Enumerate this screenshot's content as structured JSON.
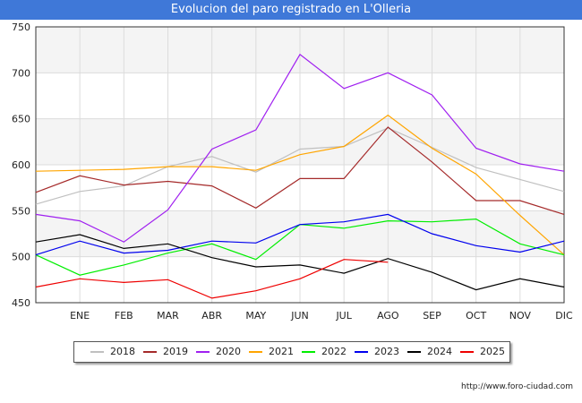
{
  "title": "Evolucion del paro registrado en L'Olleria",
  "footer_url": "http://www.foro-ciudad.com",
  "chart_data": {
    "type": "line",
    "title": "Evolucion del paro registrado en L'Olleria",
    "categories": [
      "",
      "ENE",
      "FEB",
      "MAR",
      "ABR",
      "MAY",
      "JUN",
      "JUL",
      "AGO",
      "SEP",
      "OCT",
      "NOV",
      "DIC"
    ],
    "ylim": [
      450,
      750
    ],
    "yticks": [
      450,
      500,
      550,
      600,
      650,
      700,
      750
    ],
    "grid": true,
    "legend_position": "bottom",
    "series": [
      {
        "name": "2018",
        "color": "#c0c0c0",
        "values": [
          557,
          571,
          577,
          598,
          609,
          592,
          617,
          620,
          640,
          619,
          597,
          584,
          571
        ]
      },
      {
        "name": "2019",
        "color": "#a52a2a",
        "values": [
          570,
          588,
          578,
          582,
          577,
          553,
          585,
          585,
          641,
          603,
          561,
          561,
          546
        ]
      },
      {
        "name": "2020",
        "color": "#a020f0",
        "values": [
          546,
          539,
          516,
          551,
          617,
          638,
          720,
          683,
          700,
          676,
          618,
          601,
          593
        ]
      },
      {
        "name": "2021",
        "color": "#ffa500",
        "values": [
          593,
          594,
          595,
          598,
          598,
          594,
          611,
          620,
          654,
          618,
          590,
          545,
          502
        ]
      },
      {
        "name": "2022",
        "color": "#00ee00",
        "values": [
          502,
          480,
          491,
          504,
          514,
          497,
          535,
          531,
          539,
          538,
          541,
          514,
          502
        ]
      },
      {
        "name": "2023",
        "color": "#0000ee",
        "values": [
          502,
          517,
          504,
          507,
          517,
          515,
          535,
          538,
          546,
          525,
          512,
          505,
          517
        ]
      },
      {
        "name": "2024",
        "color": "#000000",
        "values": [
          516,
          524,
          509,
          514,
          499,
          489,
          491,
          482,
          498,
          483,
          464,
          476,
          467
        ]
      },
      {
        "name": "2025",
        "color": "#ee0000",
        "values": [
          467,
          476,
          472,
          475,
          455,
          463,
          476,
          497,
          494,
          null,
          null,
          null,
          null
        ]
      }
    ]
  }
}
